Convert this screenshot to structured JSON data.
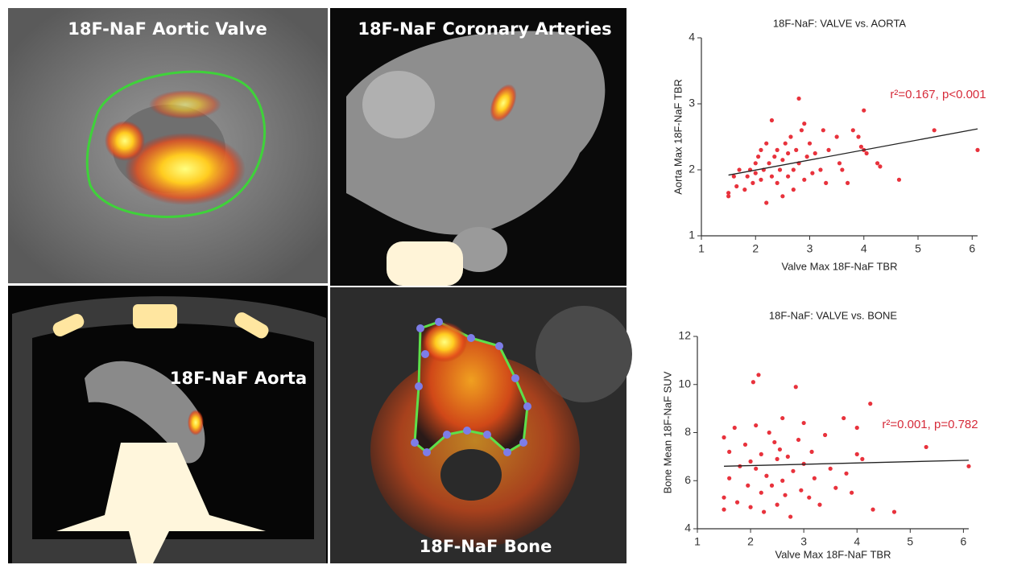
{
  "images": [
    {
      "label": "18F-NaF Aortic Valve"
    },
    {
      "label": "18F-NaF Coronary Arteries"
    },
    {
      "label": "18F-NaF Aorta"
    },
    {
      "label": "18F-NaF Bone"
    }
  ],
  "chart_data": [
    {
      "type": "scatter",
      "title": "18F-NaF: VALVE vs. AORTA",
      "x_label": "Valve Max 18F-NaF TBR",
      "y_label": "Aorta Max 18F-NaF TBR",
      "annotation": "r²=0.167, p<0.001",
      "color": "#e8323c",
      "line_color": "#222222",
      "xlim": [
        1,
        6.1
      ],
      "ylim": [
        1,
        4
      ],
      "xticks": [
        1,
        2,
        3,
        4,
        5,
        6
      ],
      "yticks": [
        1,
        2,
        3,
        4
      ],
      "trendline": {
        "x": [
          1.5,
          6.1
        ],
        "y": [
          1.92,
          2.62
        ]
      },
      "x": [
        1.5,
        1.5,
        1.6,
        1.65,
        1.7,
        1.8,
        1.85,
        1.9,
        1.95,
        2.0,
        2.0,
        2.05,
        2.1,
        2.1,
        2.15,
        2.2,
        2.2,
        2.25,
        2.3,
        2.3,
        2.35,
        2.4,
        2.4,
        2.45,
        2.5,
        2.5,
        2.55,
        2.6,
        2.6,
        2.65,
        2.7,
        2.7,
        2.75,
        2.8,
        2.8,
        2.85,
        2.9,
        2.9,
        2.95,
        3.0,
        3.05,
        3.1,
        3.2,
        3.25,
        3.3,
        3.35,
        3.5,
        3.55,
        3.6,
        3.7,
        3.8,
        3.9,
        3.95,
        4.0,
        4.0,
        4.05,
        4.25,
        4.3,
        4.65,
        5.3,
        6.1
      ],
      "y": [
        1.6,
        1.65,
        1.9,
        1.75,
        2.0,
        1.7,
        1.9,
        2.0,
        1.8,
        2.1,
        1.95,
        2.2,
        1.85,
        2.3,
        2.0,
        1.5,
        2.4,
        2.1,
        2.75,
        1.9,
        2.2,
        1.8,
        2.3,
        2.0,
        2.15,
        1.6,
        2.4,
        1.9,
        2.25,
        2.5,
        2.0,
        1.7,
        2.3,
        3.08,
        2.1,
        2.6,
        1.85,
        2.7,
        2.2,
        2.4,
        1.95,
        2.25,
        2.0,
        2.6,
        1.8,
        2.3,
        2.5,
        2.1,
        2.0,
        1.8,
        2.6,
        2.5,
        2.35,
        2.9,
        2.3,
        2.25,
        2.1,
        2.05,
        1.85,
        2.6,
        2.3
      ]
    },
    {
      "type": "scatter",
      "title": "18F-NaF: VALVE vs. BONE",
      "x_label": "Valve Max 18F-NaF TBR",
      "y_label": "Bone Mean 18F-NaF SUV",
      "annotation": "r²=0.001, p=0.782",
      "color": "#e8323c",
      "line_color": "#222222",
      "xlim": [
        1,
        6.1
      ],
      "ylim": [
        4,
        12
      ],
      "xticks": [
        1,
        2,
        3,
        4,
        5,
        6
      ],
      "yticks": [
        4,
        6,
        8,
        10,
        12
      ],
      "trendline": {
        "x": [
          1.5,
          6.1
        ],
        "y": [
          6.6,
          6.85
        ]
      },
      "x": [
        1.5,
        1.5,
        1.5,
        1.6,
        1.6,
        1.7,
        1.75,
        1.8,
        1.9,
        1.95,
        2.0,
        2.0,
        2.05,
        2.1,
        2.1,
        2.15,
        2.2,
        2.2,
        2.25,
        2.3,
        2.35,
        2.4,
        2.45,
        2.5,
        2.5,
        2.55,
        2.6,
        2.6,
        2.65,
        2.7,
        2.75,
        2.8,
        2.85,
        2.9,
        2.95,
        3.0,
        3.0,
        3.1,
        3.15,
        3.2,
        3.3,
        3.4,
        3.5,
        3.6,
        3.75,
        3.8,
        3.9,
        4.0,
        4.0,
        4.1,
        4.25,
        4.3,
        4.7,
        5.3,
        6.1
      ],
      "y": [
        7.8,
        4.8,
        5.3,
        7.2,
        6.1,
        8.2,
        5.1,
        6.6,
        7.5,
        5.8,
        6.8,
        4.9,
        10.1,
        6.5,
        8.3,
        10.4,
        5.5,
        7.1,
        4.7,
        6.2,
        8.0,
        5.8,
        7.6,
        6.9,
        5.0,
        7.3,
        8.6,
        6.0,
        5.4,
        7.0,
        4.5,
        6.4,
        9.9,
        7.7,
        5.6,
        6.7,
        8.4,
        5.3,
        7.2,
        6.1,
        5.0,
        7.9,
        6.5,
        5.7,
        8.6,
        6.3,
        5.5,
        7.1,
        8.2,
        6.9,
        9.2,
        4.8,
        4.7,
        7.4,
        6.6
      ]
    }
  ]
}
